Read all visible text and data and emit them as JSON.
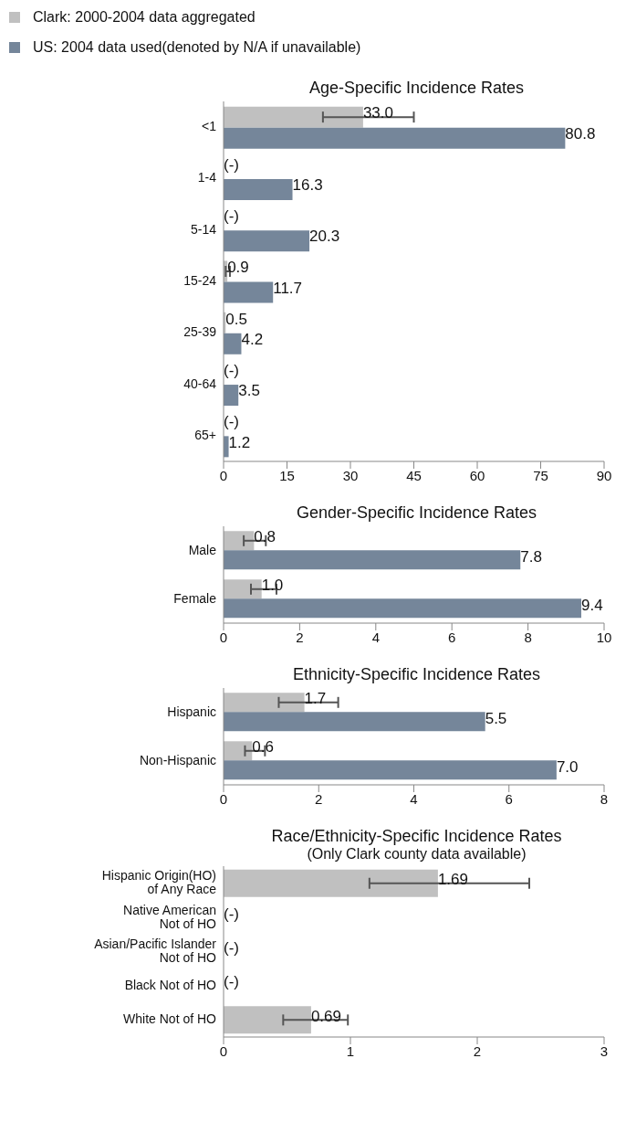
{
  "chart_data": [
    {
      "type": "bar",
      "orientation": "horizontal",
      "title": "Age-Specific Incidence Rates",
      "legend": "top",
      "categories": [
        "<1",
        "1-4",
        "5-14",
        "15-24",
        "25-39",
        "40-64",
        "65+"
      ],
      "series": [
        {
          "name": "Clark: 2000-2004 data aggregated",
          "color": "#c0c0c0",
          "values": [
            33.0,
            null,
            null,
            0.9,
            0.5,
            null,
            null
          ],
          "value_labels": [
            "33.0",
            "(-)",
            "(-)",
            "0.9",
            "0.5",
            "(-)",
            "(-)"
          ],
          "errors": [
            [
              23.5,
              45.0
            ],
            null,
            null,
            [
              0.5,
              1.5
            ],
            null,
            null,
            null
          ]
        },
        {
          "name": "US: 2004 data used(denoted by N/A if unavailable)",
          "color": "#75869a",
          "values": [
            80.8,
            16.3,
            20.3,
            11.7,
            4.2,
            3.5,
            1.2
          ],
          "value_labels": [
            "80.8",
            "16.3",
            "20.3",
            "11.7",
            "4.2",
            "3.5",
            "1.2"
          ]
        }
      ],
      "xlim": [
        0,
        90
      ],
      "xticks": [
        0,
        15,
        30,
        45,
        60,
        75,
        90
      ]
    },
    {
      "type": "bar",
      "orientation": "horizontal",
      "title": "Gender-Specific Incidence Rates",
      "categories": [
        "Male",
        "Female"
      ],
      "series": [
        {
          "color": "#c0c0c0",
          "values": [
            0.8,
            1.0
          ],
          "value_labels": [
            "0.8",
            "1.0"
          ],
          "errors": [
            [
              0.53,
              1.11
            ],
            [
              0.72,
              1.39
            ]
          ]
        },
        {
          "color": "#75869a",
          "values": [
            7.8,
            9.4
          ],
          "value_labels": [
            "7.8",
            "9.4"
          ]
        }
      ],
      "xlim": [
        0,
        10
      ],
      "xticks": [
        0,
        2,
        4,
        6,
        8,
        10
      ]
    },
    {
      "type": "bar",
      "orientation": "horizontal",
      "title": "Ethnicity-Specific Incidence Rates",
      "categories": [
        "Hispanic",
        "Non-Hispanic"
      ],
      "series": [
        {
          "color": "#c0c0c0",
          "values": [
            1.7,
            0.6
          ],
          "value_labels": [
            "1.7",
            "0.6"
          ],
          "errors": [
            [
              1.16,
              2.41
            ],
            [
              0.45,
              0.87
            ]
          ]
        },
        {
          "color": "#75869a",
          "values": [
            5.5,
            7.0
          ],
          "value_labels": [
            "5.5",
            "7.0"
          ]
        }
      ],
      "xlim": [
        0,
        8
      ],
      "xticks": [
        0,
        2,
        4,
        6,
        8
      ]
    },
    {
      "type": "bar",
      "orientation": "horizontal",
      "title": "Race/Ethnicity-Specific Incidence Rates",
      "subtitle": "(Only Clark county data available)",
      "categories": [
        "Hispanic Origin(HO)\nof Any Race",
        "Native American\nNot of HO",
        "Asian/Pacific Islander\nNot of HO",
        "Black Not of HO",
        "White Not of HO"
      ],
      "series": [
        {
          "color": "#c0c0c0",
          "values": [
            1.69,
            null,
            null,
            null,
            0.69
          ],
          "value_labels": [
            "1.69",
            "(-)",
            "(-)",
            "(-)",
            "0.69"
          ],
          "errors": [
            [
              1.15,
              2.41
            ],
            null,
            null,
            null,
            [
              0.47,
              0.98
            ]
          ]
        }
      ],
      "xlim": [
        0,
        3
      ],
      "xticks": [
        0,
        1,
        2,
        3
      ]
    }
  ]
}
